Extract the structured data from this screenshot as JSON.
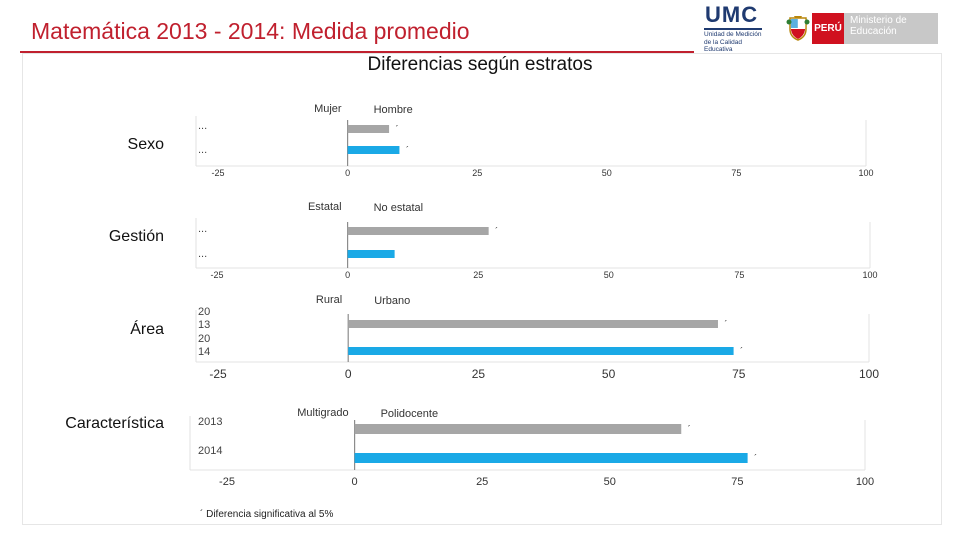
{
  "header": {
    "title": "Matemática 2013 - 2014: Medida promedio",
    "subtitle": "Diferencias según estratos"
  },
  "logos": {
    "umc_name": "UMC",
    "umc_subtitle": "Unidad de Medición de la Calidad Educativa",
    "peru_label": "PERÚ",
    "ministry_label": "Ministerio de Educación"
  },
  "colors": {
    "series_2013": "#a6a6a6",
    "series_2014": "#1aa9e6",
    "title_red": "#c0202e"
  },
  "footnote": "´ Diferencia significativa al 5%",
  "chart_data": [
    {
      "type": "bar",
      "section": "Sexo",
      "left_label": "Mujer",
      "right_label": "Hombre",
      "row_labels": [
        "...",
        "..."
      ],
      "series": [
        {
          "name": "2013",
          "values": [
            8
          ],
          "significant": true
        },
        {
          "name": "2014",
          "values": [
            10
          ],
          "significant": true
        }
      ],
      "xlim": [
        -25,
        100
      ],
      "ticks": [
        -25,
        0,
        25,
        50,
        75,
        100
      ],
      "tick_labels": [
        "-25",
        "0",
        "25",
        "50",
        "75",
        "100"
      ]
    },
    {
      "type": "bar",
      "section": "Gestión",
      "left_label": "Estatal",
      "right_label": "No estatal",
      "row_labels": [
        "...",
        "..."
      ],
      "series": [
        {
          "name": "2013",
          "values": [
            27
          ],
          "significant": true
        },
        {
          "name": "2014",
          "values": [
            9
          ],
          "significant": false
        }
      ],
      "xlim": [
        -25,
        100
      ],
      "ticks": [
        -25,
        0,
        25,
        50,
        75,
        100
      ],
      "tick_labels": [
        "-25",
        "0",
        "25",
        "50",
        "75",
        "100"
      ]
    },
    {
      "type": "bar",
      "section": "Área",
      "left_label": "Rural",
      "right_label": "Urbano",
      "row_labels": [
        "20\n13",
        "20\n14"
      ],
      "series": [
        {
          "name": "2013",
          "values": [
            71
          ],
          "significant": true
        },
        {
          "name": "2014",
          "values": [
            74
          ],
          "significant": true
        }
      ],
      "xlim": [
        -25,
        100
      ],
      "ticks": [
        -25,
        0,
        25,
        50,
        75,
        100
      ],
      "tick_labels": [
        "-25",
        "0",
        "25",
        "50",
        "75",
        "100"
      ]
    },
    {
      "type": "bar",
      "section": "Característica",
      "left_label": "Multigrado",
      "right_label": "Polidocente",
      "row_labels": [
        "2013",
        "2014"
      ],
      "series": [
        {
          "name": "2013",
          "values": [
            64
          ],
          "significant": true
        },
        {
          "name": "2014",
          "values": [
            77
          ],
          "significant": true
        }
      ],
      "xlim": [
        -25,
        100
      ],
      "ticks": [
        -25,
        0,
        25,
        50,
        75,
        100
      ],
      "tick_labels": [
        "-25",
        "0",
        "25",
        "50",
        "75",
        "100"
      ]
    }
  ]
}
